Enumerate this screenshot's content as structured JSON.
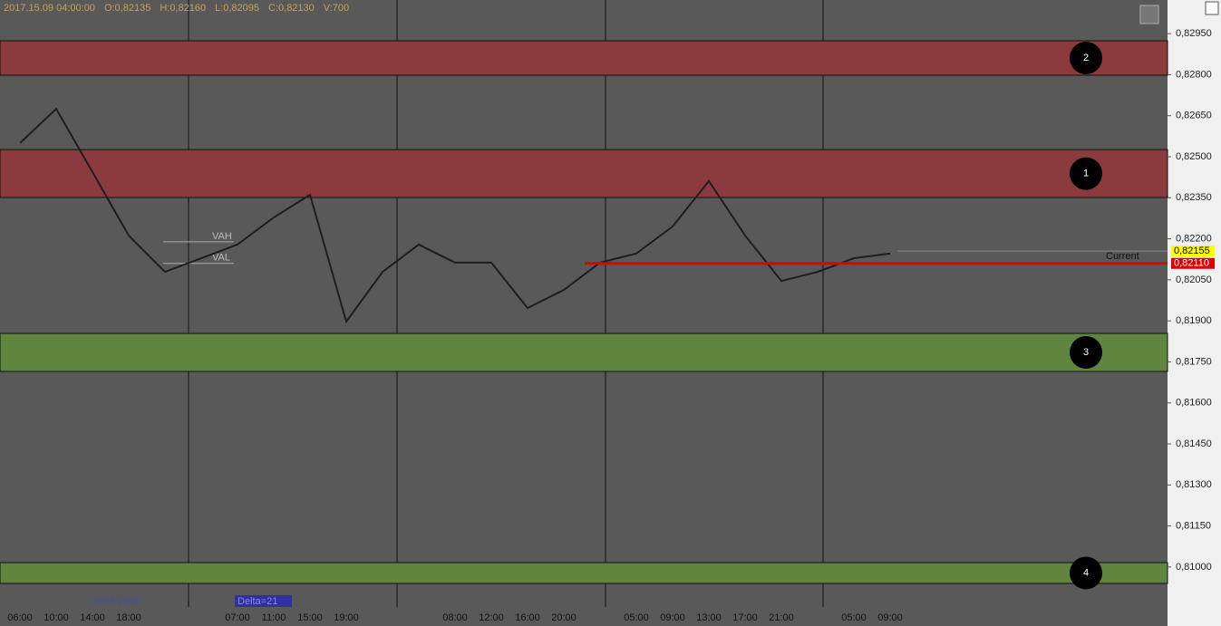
{
  "chart_data": {
    "type": "line",
    "header": [
      "2017.15.09 04:00:00",
      "O:0,82135",
      "H:0,82160",
      "L:0,82095",
      "C:0,82130",
      "V:700"
    ],
    "categories": [
      "06:00",
      "10:00",
      "14:00",
      "18:00",
      null,
      null,
      "07:00",
      "11:00",
      "15:00",
      "19:00",
      null,
      null,
      "08:00",
      "12:00",
      "16:00",
      "20:00",
      null,
      "05:00",
      "09:00",
      "13:00",
      "17:00",
      "21:00",
      null,
      "05:00",
      "09:00"
    ],
    "series": [
      {
        "color": "#1e1e1e",
        "values": [
          0.8255,
          0.82675,
          0.82444,
          0.82212,
          0.82079,
          0.82129,
          0.82179,
          0.82278,
          0.82361,
          0.81897,
          0.82079,
          0.82179,
          0.82113,
          0.82113,
          0.81947,
          0.82013,
          0.82113,
          0.82146,
          0.82245,
          0.82411,
          0.82212,
          0.82046,
          0.82079,
          0.82129,
          0.82146
        ]
      }
    ],
    "ylim": [
      0.80887,
      0.83073
    ],
    "yticks": [
      {
        "value": 0.8295,
        "label": "0,82950"
      },
      {
        "value": 0.828,
        "label": "0,82800"
      },
      {
        "value": 0.8265,
        "label": "0,82650"
      },
      {
        "value": 0.825,
        "label": "0,82500"
      },
      {
        "value": 0.8235,
        "label": "0,82350"
      },
      {
        "value": 0.822,
        "label": "0,82200"
      },
      {
        "value": 0.8205,
        "label": "0,82050"
      },
      {
        "value": 0.819,
        "label": "0,81900"
      },
      {
        "value": 0.8175,
        "label": "0,81750"
      },
      {
        "value": 0.816,
        "label": "0,81600"
      },
      {
        "value": 0.8145,
        "label": "0,81450"
      },
      {
        "value": 0.813,
        "label": "0,81300"
      },
      {
        "value": 0.8115,
        "label": "0,81150"
      },
      {
        "value": 0.81,
        "label": "0,81000"
      }
    ],
    "zones": [
      {
        "label": "2",
        "from": 0.82798,
        "to": 0.82924,
        "color": "#8b3b3d"
      },
      {
        "label": "1",
        "from": 0.82351,
        "to": 0.82526,
        "color": "#8b3b3d"
      },
      {
        "label": "3",
        "from": 0.81715,
        "to": 0.81854,
        "color": "#5f853f"
      },
      {
        "label": "4",
        "from": 0.8094,
        "to": 0.81016,
        "color": "#5f853f"
      }
    ],
    "value_area": [
      {
        "label": "VAH",
        "value": 0.82189
      },
      {
        "label": "VAL",
        "value": 0.8211
      }
    ],
    "price_markers": [
      {
        "value": 0.82155,
        "label": "0,82155",
        "color": "#ffff00"
      },
      {
        "value": 0.8211,
        "label": "0,82110",
        "color": "#e00000"
      }
    ],
    "current_label": "Current",
    "footer": {
      "volume": "2574 2595",
      "delta": "Delta=21"
    }
  }
}
